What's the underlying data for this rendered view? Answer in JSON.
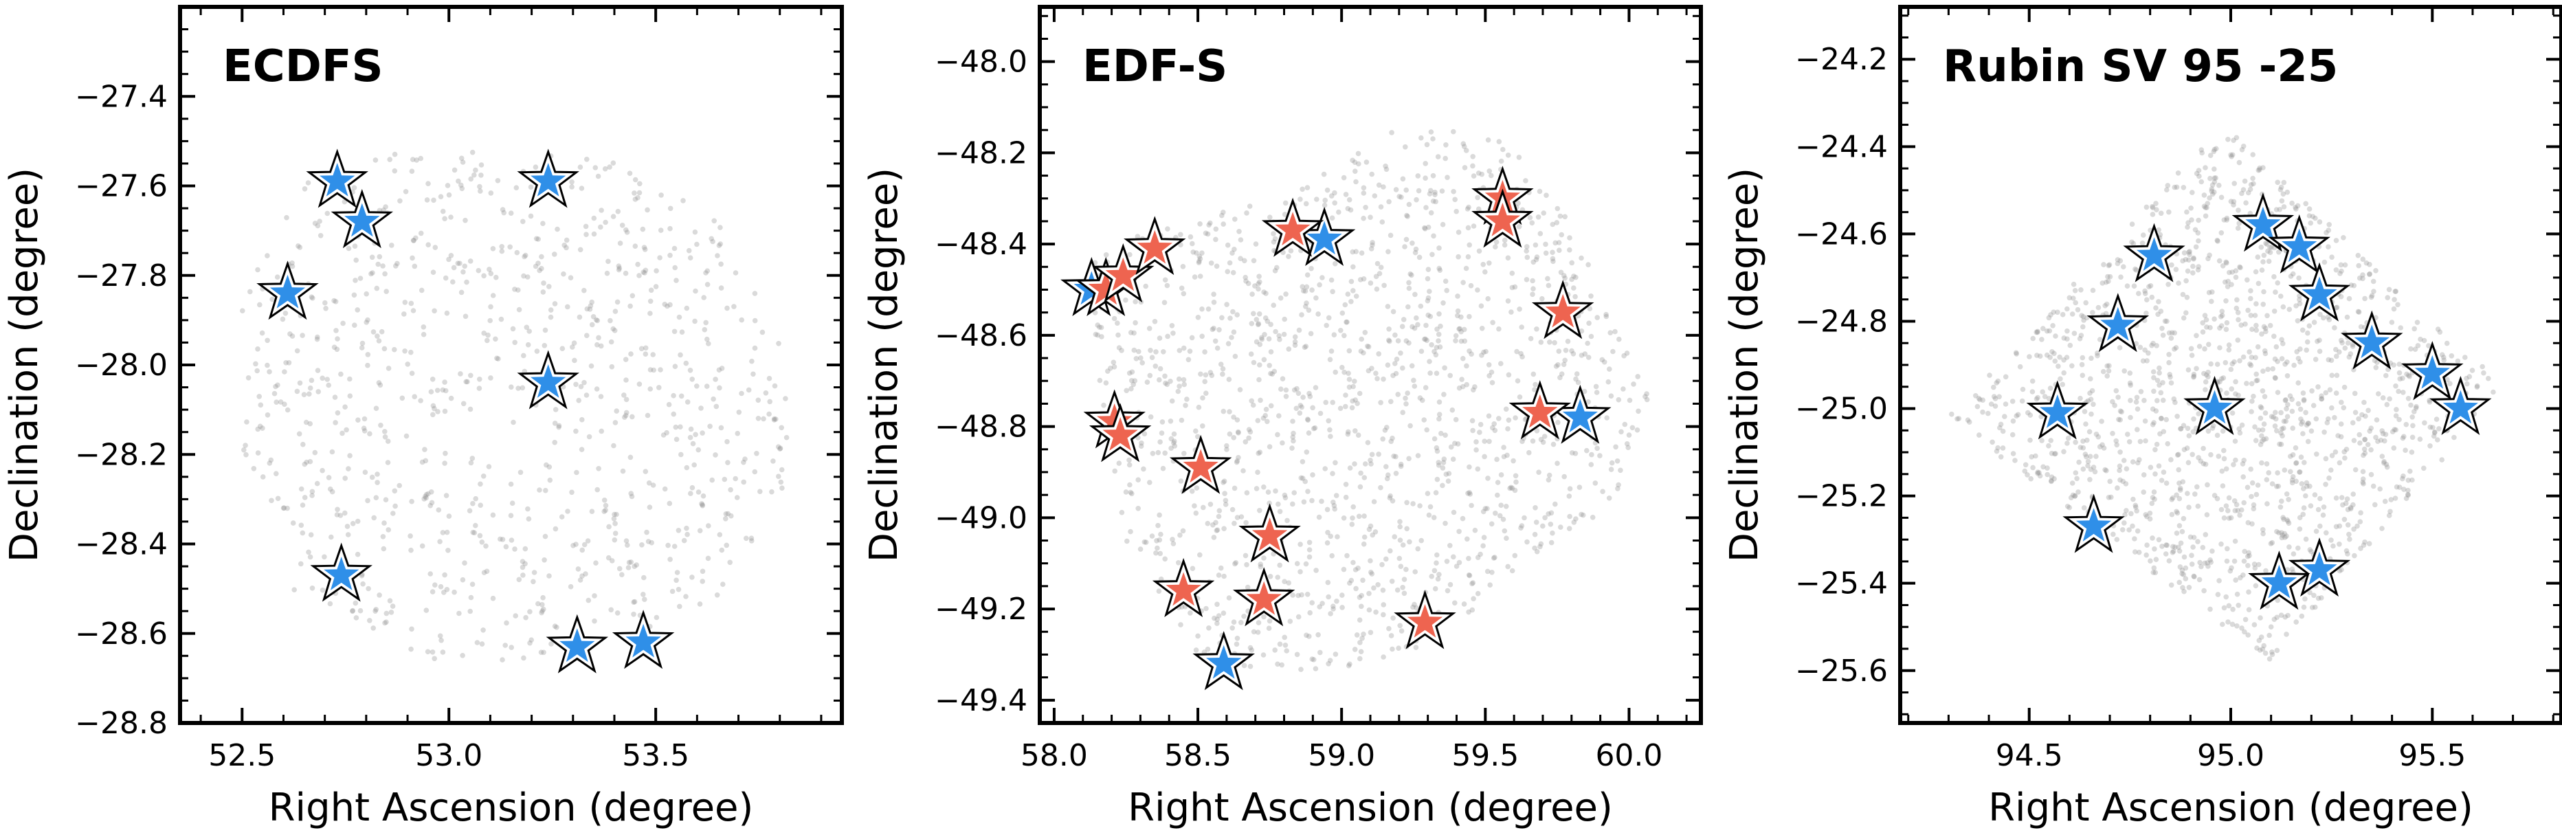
{
  "figure": {
    "name": "three-panel sky field figure"
  },
  "colors": {
    "background_point": "#8c8c8c",
    "star_blue": "#2f8fe8",
    "star_red": "#ee6450",
    "star_outline": "#000000",
    "axis": "#000000"
  },
  "chart_data": [
    {
      "type": "scatter",
      "title": "ECDFS",
      "xlabel": "Right Ascension (degree)",
      "ylabel": "Declination (degree)",
      "xlim": [
        52.35,
        53.95
      ],
      "ylim": [
        -28.8,
        -27.2
      ],
      "xticks": [
        "52.5",
        "53.0",
        "53.5"
      ],
      "yticks": [
        "−27.4",
        "−27.6",
        "−27.8",
        "−28.0",
        "−28.2",
        "−28.4",
        "−28.6",
        "−28.8"
      ],
      "grid": false,
      "legend": "none",
      "background": {
        "shape": "polygon",
        "vertices": [
          [
            52.5,
            -27.85
          ],
          [
            52.65,
            -27.6
          ],
          [
            52.75,
            -27.52
          ],
          [
            53.2,
            -27.52
          ],
          [
            53.45,
            -27.55
          ],
          [
            53.65,
            -27.68
          ],
          [
            53.82,
            -27.95
          ],
          [
            53.82,
            -28.3
          ],
          [
            53.68,
            -28.5
          ],
          [
            53.45,
            -28.62
          ],
          [
            53.0,
            -28.68
          ],
          [
            52.62,
            -28.5
          ],
          [
            52.5,
            -28.2
          ]
        ],
        "count": 900
      },
      "series": [
        {
          "color": "blue",
          "points": [
            [
              52.73,
              -27.59
            ],
            [
              52.79,
              -27.68
            ],
            [
              52.61,
              -27.84
            ],
            [
              53.24,
              -27.59
            ],
            [
              53.24,
              -28.04
            ],
            [
              52.74,
              -28.47
            ],
            [
              53.31,
              -28.63
            ],
            [
              53.47,
              -28.62
            ]
          ]
        }
      ]
    },
    {
      "type": "scatter",
      "title": "EDF-S",
      "xlabel": "Right Ascension (degree)",
      "ylabel": "Declination (degree)",
      "xlim": [
        57.95,
        60.25
      ],
      "ylim": [
        -49.45,
        -47.88
      ],
      "xticks": [
        "58.0",
        "58.5",
        "59.0",
        "59.5",
        "60.0"
      ],
      "yticks": [
        "−48.0",
        "−48.2",
        "−48.4",
        "−48.6",
        "−48.8",
        "−49.0",
        "−49.2",
        "−49.4"
      ],
      "grid": false,
      "legend": "none",
      "background": {
        "shape": "polygon",
        "vertices": [
          [
            58.1,
            -48.45
          ],
          [
            58.35,
            -48.35
          ],
          [
            58.8,
            -48.3
          ],
          [
            59.25,
            -48.12
          ],
          [
            59.6,
            -48.18
          ],
          [
            59.8,
            -48.35
          ],
          [
            59.95,
            -48.55
          ],
          [
            60.08,
            -48.75
          ],
          [
            60.02,
            -48.92
          ],
          [
            59.7,
            -49.1
          ],
          [
            59.25,
            -49.3
          ],
          [
            58.8,
            -49.35
          ],
          [
            58.5,
            -49.3
          ],
          [
            58.25,
            -49.05
          ],
          [
            58.15,
            -48.7
          ]
        ],
        "count": 1400
      },
      "series": [
        {
          "color": "blue",
          "points": [
            [
              58.13,
              -48.5
            ],
            [
              58.94,
              -48.39
            ],
            [
              59.83,
              -48.78
            ],
            [
              58.59,
              -49.32
            ]
          ]
        },
        {
          "color": "red",
          "points": [
            [
              58.18,
              -48.5
            ],
            [
              58.24,
              -48.47
            ],
            [
              58.35,
              -48.41
            ],
            [
              58.83,
              -48.37
            ],
            [
              59.56,
              -48.3
            ],
            [
              59.56,
              -48.35
            ],
            [
              59.77,
              -48.55
            ],
            [
              58.21,
              -48.79
            ],
            [
              58.23,
              -48.82
            ],
            [
              59.69,
              -48.77
            ],
            [
              58.51,
              -48.89
            ],
            [
              58.75,
              -49.04
            ],
            [
              58.45,
              -49.16
            ],
            [
              58.73,
              -49.18
            ],
            [
              59.29,
              -49.23
            ]
          ]
        }
      ]
    },
    {
      "type": "scatter",
      "title": "Rubin SV 95 -25",
      "xlabel": "Right Ascension (degree)",
      "ylabel": "Declination (degree)",
      "xlim": [
        94.18,
        95.82
      ],
      "ylim": [
        -25.72,
        -24.08
      ],
      "xticks": [
        "94.5",
        "95.0",
        "95.5"
      ],
      "yticks": [
        "−24.2",
        "−24.4",
        "−24.6",
        "−24.8",
        "−25.0",
        "−25.2",
        "−25.4",
        "−25.6"
      ],
      "grid": false,
      "legend": "none",
      "background": {
        "shape": "polygon",
        "vertices": [
          [
            94.98,
            -24.35
          ],
          [
            95.68,
            -24.95
          ],
          [
            95.1,
            -25.58
          ],
          [
            94.3,
            -25.02
          ]
        ],
        "count": 1500
      },
      "series": [
        {
          "color": "blue",
          "points": [
            [
              95.08,
              -24.58
            ],
            [
              95.17,
              -24.63
            ],
            [
              94.81,
              -24.65
            ],
            [
              95.22,
              -24.74
            ],
            [
              94.72,
              -24.81
            ],
            [
              95.35,
              -24.85
            ],
            [
              95.5,
              -24.92
            ],
            [
              94.96,
              -25.0
            ],
            [
              95.57,
              -25.0
            ],
            [
              94.57,
              -25.01
            ],
            [
              94.66,
              -25.27
            ],
            [
              95.22,
              -25.37
            ],
            [
              95.12,
              -25.4
            ]
          ]
        }
      ]
    }
  ]
}
